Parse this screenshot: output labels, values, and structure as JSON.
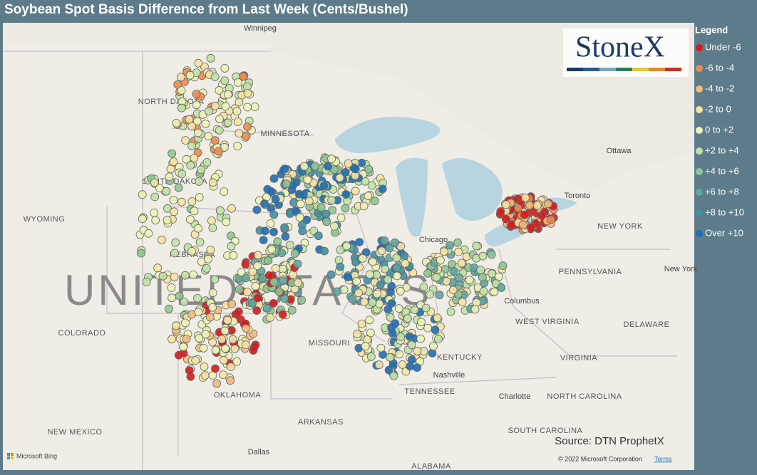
{
  "title": "Soybean Spot Basis Difference from Last Week (Cents/Bushel)",
  "legend": {
    "title": "Legend",
    "items": [
      {
        "label": "Under -6",
        "color": "#d7191c"
      },
      {
        "label": "-6 to -4",
        "color": "#ee8a4e"
      },
      {
        "label": "-4 to -2",
        "color": "#f4b97c"
      },
      {
        "label": "-2 to 0",
        "color": "#f6e2a2"
      },
      {
        "label": "0 to +2",
        "color": "#edf2b6"
      },
      {
        "label": "+2 to +4",
        "color": "#c1e2a5"
      },
      {
        "label": "+4 to +6",
        "color": "#8ec592"
      },
      {
        "label": "+6 to +8",
        "color": "#5ea6a2"
      },
      {
        "label": "+8 to +10",
        "color": "#3f8fa5"
      },
      {
        "label": "Over +10",
        "color": "#1f6db4"
      }
    ]
  },
  "logo": "StoneX",
  "map": {
    "country": "UNITED STATES",
    "labels": [
      "Winnipeg",
      "NORTH DAKOTA",
      "MINNESOTA",
      "SOUTH DAKOTA",
      "WYOMING",
      "NEBRASKA",
      "COLORADO",
      "MISSOURI",
      "KENTUCKY",
      "Nashville",
      "TENNESSEE",
      "OKLAHOMA",
      "ARKANSAS",
      "NEW MEXICO",
      "Dallas",
      "ALABAMA",
      "Chicago",
      "Columbus",
      "WEST VIRGINIA",
      "VIRGINIA",
      "NORTH CAROLINA",
      "SOUTH CAROLINA",
      "Charlotte",
      "Ottawa",
      "Toronto",
      "NEW YORK",
      "PENNSYLVANIA",
      "DELAWARE",
      "New York"
    ]
  },
  "source": "Source: DTN ProphetX",
  "copyright": "© 2022 Microsoft Corporation",
  "terms": "Terms",
  "bing": "Microsoft Bing"
}
